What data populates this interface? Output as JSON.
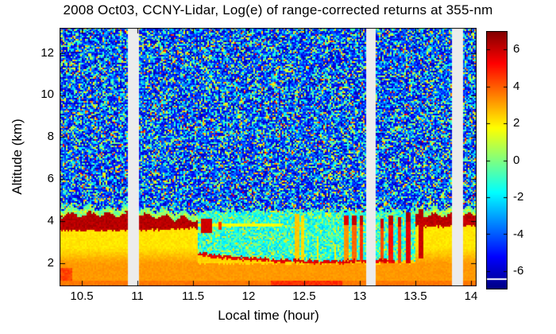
{
  "chart_data": {
    "type": "heatmap",
    "title": "2008 Oct03, CCNY-Lidar, Log(e) of range-corrected returns at 355-nm",
    "xlabel": "Local time (hour)",
    "ylabel": "Altitude (km)",
    "x_range": [
      10.3,
      14.05
    ],
    "y_range": [
      0.9,
      13.2
    ],
    "x_ticks": [
      "10.5",
      "11",
      "11.5",
      "12",
      "12.5",
      "13",
      "13.5",
      "14"
    ],
    "y_ticks": [
      "2",
      "4",
      "6",
      "8",
      "10",
      "12"
    ],
    "colorbar_ticks": [
      "6",
      "4",
      "2",
      "0",
      "-2",
      "-4",
      "-6"
    ],
    "value_range": [
      -7,
      7
    ],
    "colormap": "jet",
    "grid": false,
    "legend_position": "colorbar-right",
    "no_data_color": "#ececec",
    "data_gaps_hours": [
      [
        10.92,
        11.01
      ],
      [
        13.06,
        13.14
      ],
      [
        13.83,
        13.93
      ]
    ],
    "regions": {
      "surface": {
        "z_top": 1.97,
        "value": 3.15,
        "deep_value": 3.6,
        "deep_z": 1.15
      },
      "morning_plume": {
        "t_end": 11.55,
        "bottom": 3.55,
        "top": 4.32,
        "value": 6.25
      },
      "afternoon_plume": {
        "t_start": 13.5,
        "bottom": 3.75,
        "top": 4.3,
        "value": 6.15
      },
      "subplume_value": 2.1,
      "entrain_line": {
        "points": [
          [
            11.55,
            2.45
          ],
          [
            11.75,
            2.3
          ],
          [
            12.0,
            2.2
          ],
          [
            12.3,
            2.12
          ],
          [
            12.6,
            2.05
          ],
          [
            12.9,
            2.07
          ],
          [
            13.32,
            2.12
          ]
        ],
        "t_end": 13.32,
        "value": 5.7,
        "half_width": 0.07
      },
      "under_line_value": 2.3,
      "residual_line": {
        "t_end": 12.3,
        "z": 3.82,
        "value": 1.6
      },
      "clear_top": 4.5,
      "hot_bottom": {
        "t1": 12.2,
        "t2": 12.85,
        "value": 4.6
      }
    },
    "streaks": [
      {
        "t": 11.62,
        "w": 0.05,
        "z1": 3.45,
        "z2": 4.1,
        "v": 5.9
      },
      {
        "t": 11.74,
        "w": 0.018,
        "z1": 3.55,
        "z2": 3.95,
        "v": 4.6
      },
      {
        "t": 12.44,
        "w": 0.022,
        "z1": 2.1,
        "z2": 4.35,
        "v": 2.5
      },
      {
        "t": 12.49,
        "w": 0.014,
        "z1": 2.05,
        "z2": 4.3,
        "v": 2.2
      },
      {
        "t": 12.62,
        "w": 0.012,
        "z1": 2.1,
        "z2": 3.3,
        "v": 2.0
      },
      {
        "t": 12.78,
        "w": 0.01,
        "z1": 2.1,
        "z2": 2.9,
        "v": 1.9
      },
      {
        "t": 12.88,
        "w": 0.016,
        "z1": 2.1,
        "z2": 4.25,
        "v": 3.2,
        "cap": 5.6
      },
      {
        "t": 12.95,
        "w": 0.018,
        "z1": 2.1,
        "z2": 4.3,
        "v": 3.8,
        "cap": 6.0
      },
      {
        "t": 13.02,
        "w": 0.015,
        "z1": 2.1,
        "z2": 4.3,
        "v": 4.6,
        "cap": 6.1
      },
      {
        "t": 13.2,
        "w": 0.018,
        "z1": 2.0,
        "z2": 4.15,
        "v": 4.2,
        "cap": 5.8
      },
      {
        "t": 13.28,
        "w": 0.022,
        "z1": 2.0,
        "z2": 4.3,
        "v": 5.0,
        "cap": 6.2
      },
      {
        "t": 13.36,
        "w": 0.018,
        "z1": 2.0,
        "z2": 4.2,
        "v": 4.4,
        "cap": 6.0
      },
      {
        "t": 13.44,
        "w": 0.02,
        "z1": 2.0,
        "z2": 4.45,
        "v": 5.6,
        "cap": 6.3
      },
      {
        "t": 13.55,
        "w": 0.028,
        "z1": 2.2,
        "z2": 4.55,
        "v": 6.0,
        "cap": 6.3
      }
    ],
    "description": "Lidar range-corrected return heatmap: dark-red aerosol plume near 4 km from 10.3-11.5 and 13.5-14, thin red entrainment line near 2.1 km from 11.6-13.3, orange boundary layer below 2 km, cyan clear-air band 2-4.5 km midday, blue noise speckle above 4.5 km, vertical cloud streaks near 12.45, 12.9-13.0 and 13.2-13.55, three light-gray no-data gaps near 10.95, 13.1 and 13.9."
  }
}
